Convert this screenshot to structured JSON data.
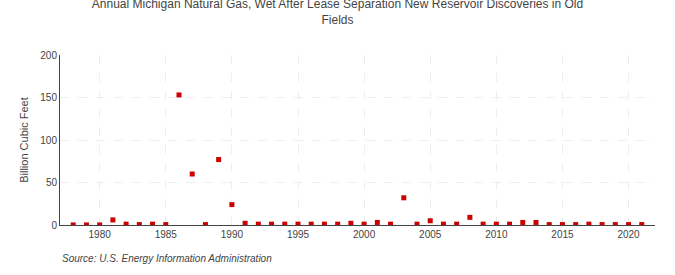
{
  "chart_data": {
    "type": "scatter",
    "title": "Annual Michigan Natural Gas, Wet After Lease Separation New Reservoir Discoveries in Old\nFields",
    "y_label": "Billion Cubic Feet",
    "annotations": [
      "Source: U.S. Energy Information Administration"
    ],
    "x": [
      1978,
      1979,
      1980,
      1981,
      1982,
      1983,
      1984,
      1985,
      1986,
      1987,
      1988,
      1989,
      1990,
      1991,
      1992,
      1993,
      1994,
      1995,
      1996,
      1997,
      1998,
      1999,
      2000,
      2001,
      2002,
      2003,
      2004,
      2005,
      2006,
      2007,
      2008,
      2009,
      2010,
      2011,
      2012,
      2013,
      2014,
      2015,
      2016,
      2017,
      2018,
      2019,
      2020,
      2021
    ],
    "values": [
      0.1,
      0.1,
      0.1,
      6,
      1,
      0.5,
      1,
      0.5,
      153,
      60,
      0.5,
      77,
      24,
      2,
      1,
      1,
      1,
      1,
      1,
      1,
      1,
      2,
      1,
      3,
      1,
      32,
      1,
      5,
      1,
      1,
      9,
      1,
      1,
      1,
      3,
      3,
      0.5,
      0.5,
      0.5,
      1,
      0.5,
      0.5,
      0.5,
      0.5
    ],
    "color": "#cc0000",
    "marker": "square",
    "xlim": [
      1977,
      2022
    ],
    "xticks": [
      1980,
      1985,
      1990,
      1995,
      2000,
      2005,
      2010,
      2015,
      2020
    ],
    "ylim": [
      0,
      200
    ],
    "yticks": [
      0,
      50,
      100,
      150,
      200
    ],
    "grid": true
  }
}
